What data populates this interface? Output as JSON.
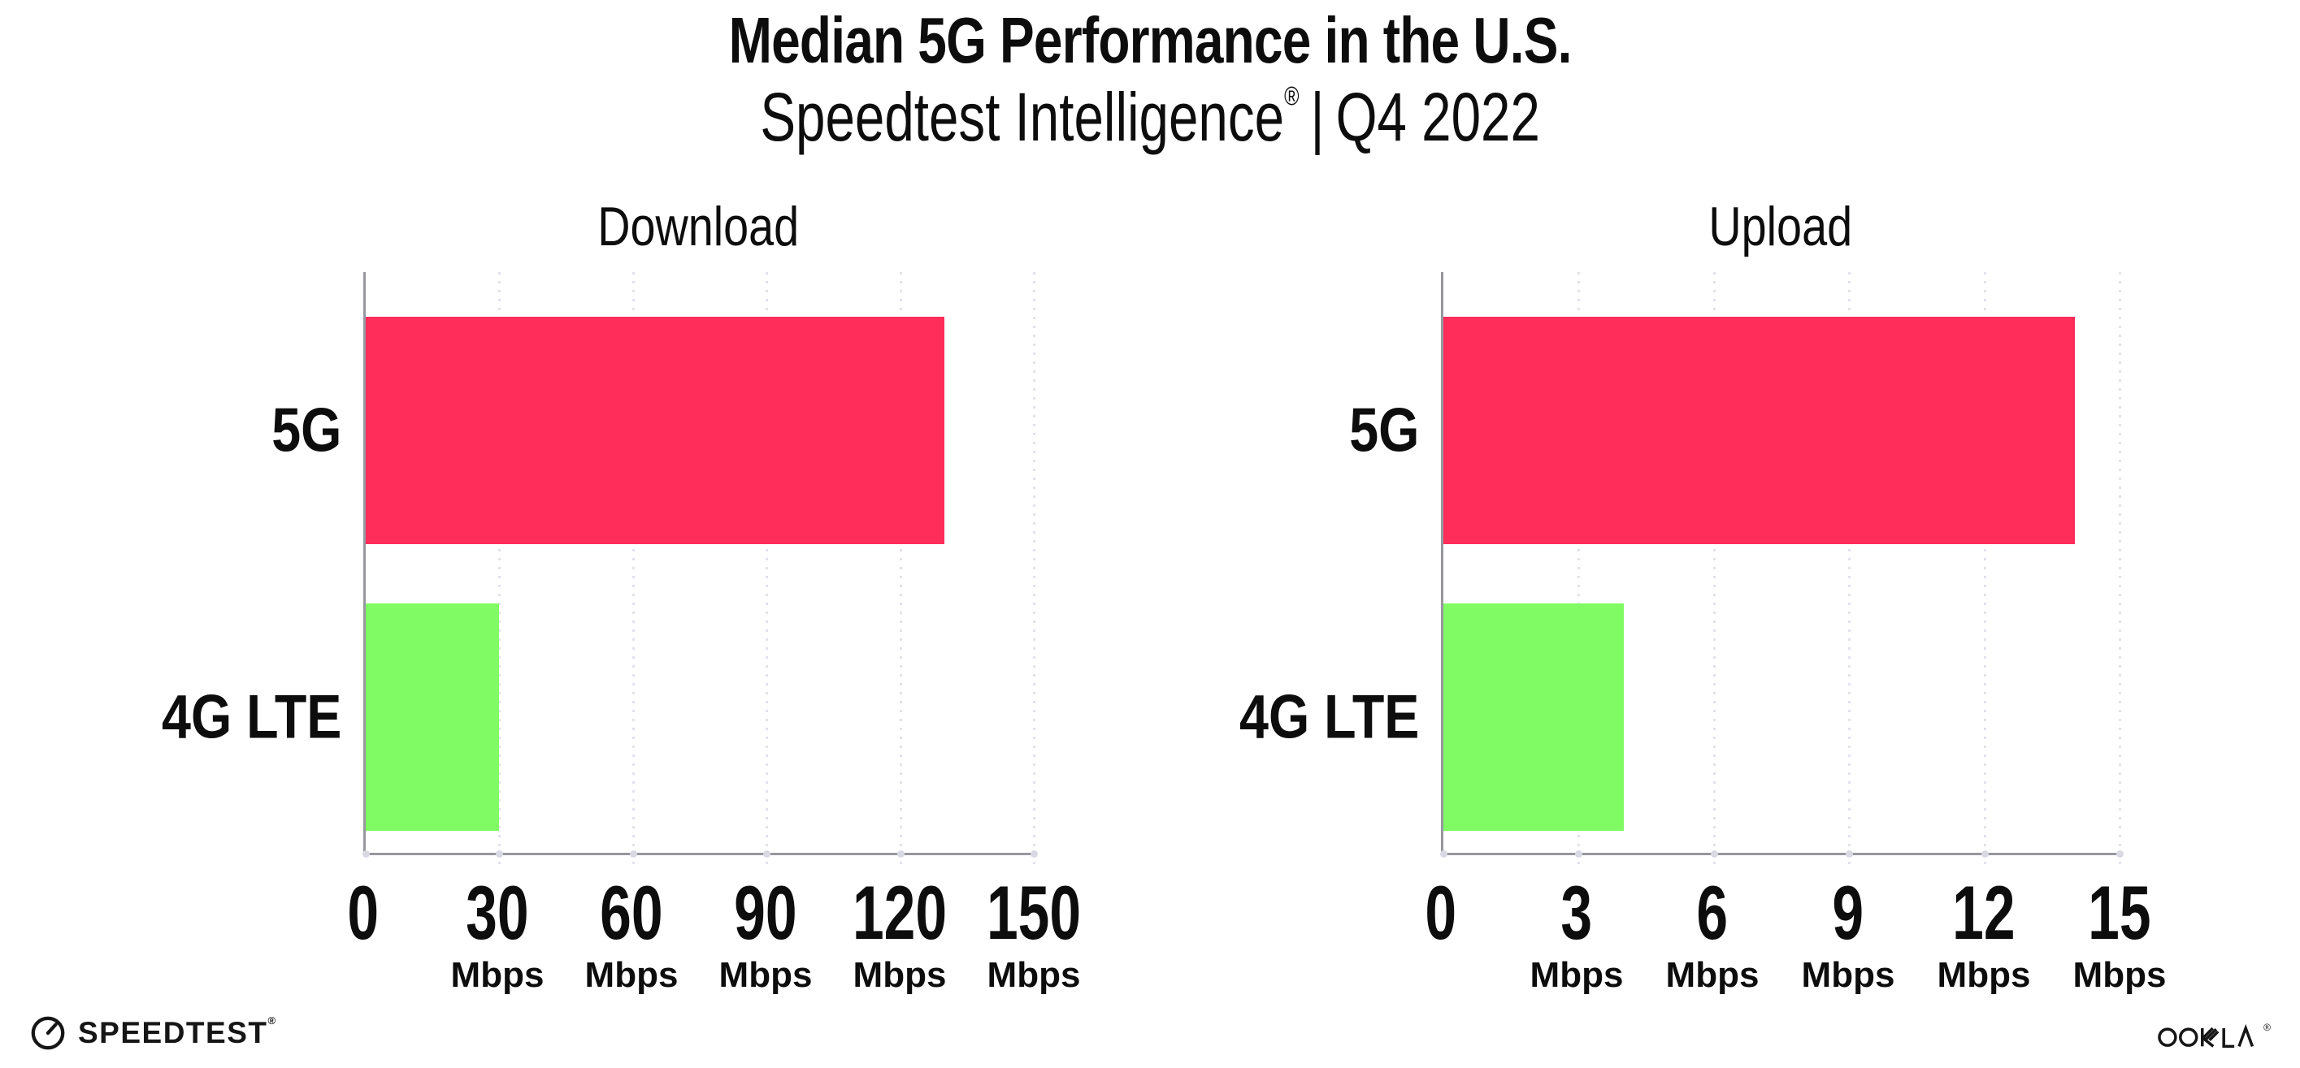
{
  "header": {
    "title": "Median 5G Performance in the U.S.",
    "subtitle_brand": "Speedtest Intelligence",
    "subtitle_reg": "®",
    "subtitle_sep": "|",
    "subtitle_period": "Q4 2022"
  },
  "chart_data": [
    {
      "id": "download",
      "type": "bar",
      "orientation": "horizontal",
      "title": "Download",
      "categories": [
        "5G",
        "4G LTE"
      ],
      "values": [
        130,
        30
      ],
      "unit": "Mbps",
      "xticks": [
        0,
        30,
        60,
        90,
        120,
        150
      ],
      "xlim": [
        0,
        150
      ],
      "bar_colors": [
        "#ff2d59",
        "#80fb63"
      ],
      "grid": "dotted-vertical",
      "legend": "none"
    },
    {
      "id": "upload",
      "type": "bar",
      "orientation": "horizontal",
      "title": "Upload",
      "categories": [
        "5G",
        "4G LTE"
      ],
      "values": [
        14,
        4
      ],
      "unit": "Mbps",
      "xticks": [
        0,
        3,
        6,
        9,
        12,
        15
      ],
      "xlim": [
        0,
        15
      ],
      "bar_colors": [
        "#ff2d59",
        "#80fb63"
      ],
      "grid": "dotted-vertical",
      "legend": "none"
    }
  ],
  "footer": {
    "speedtest_label": "SPEEDTEST",
    "speedtest_reg": "®",
    "ookla_label": "OOKLA",
    "ookla_reg": "®"
  },
  "colors": {
    "bar_5g": "#ff2d59",
    "bar_4g_lte": "#80fb63",
    "axis": "#97979f",
    "gridline": "#e2e2ec",
    "text": "#0d0d0d",
    "background": "#ffffff"
  }
}
